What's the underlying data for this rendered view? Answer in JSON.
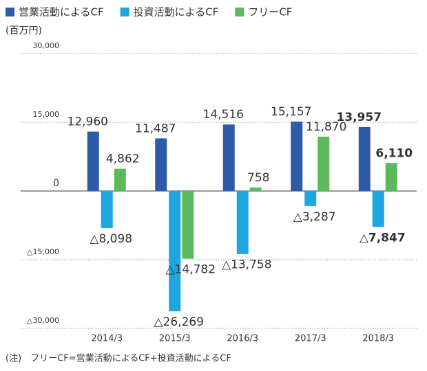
{
  "chart_data": {
    "type": "bar",
    "y_label": "(百万円)",
    "categories": [
      "2014/3",
      "2015/3",
      "2016/3",
      "2017/3",
      "2018/3"
    ],
    "series": [
      {
        "name": "営業活動によるCF",
        "color": "#2e5aa8",
        "values": [
          12960,
          11487,
          14516,
          15157,
          13957
        ],
        "value_labels": [
          "12,960",
          "11,487",
          "14,516",
          "15,157",
          "13,957"
        ]
      },
      {
        "name": "投資活動によるCF",
        "color": "#1ea6e0",
        "values": [
          -8098,
          -26269,
          -13758,
          -3287,
          -7847
        ],
        "value_labels": [
          "△8,098",
          "△26,269",
          "△13,758",
          "△3,287",
          "△7,847"
        ]
      },
      {
        "name": "フリーCF",
        "color": "#5cb85c",
        "values": [
          4862,
          -14782,
          758,
          11870,
          6110
        ],
        "value_labels": [
          "4,862",
          "△14,782",
          "758",
          "11,870",
          "6,110"
        ]
      }
    ],
    "bold_category": "2018/3",
    "ylim": [
      -30000,
      30000
    ],
    "yticks": [
      {
        "value": -30000,
        "label": "△30,000"
      },
      {
        "value": -15000,
        "label": "△15,000"
      },
      0,
      {
        "value": 15000,
        "label": "15,000"
      },
      {
        "value": 30000,
        "label": "30,000"
      }
    ],
    "grid": true,
    "note": "(注)　フリーCF=営業活動によるCF+投資活動によるCF"
  }
}
